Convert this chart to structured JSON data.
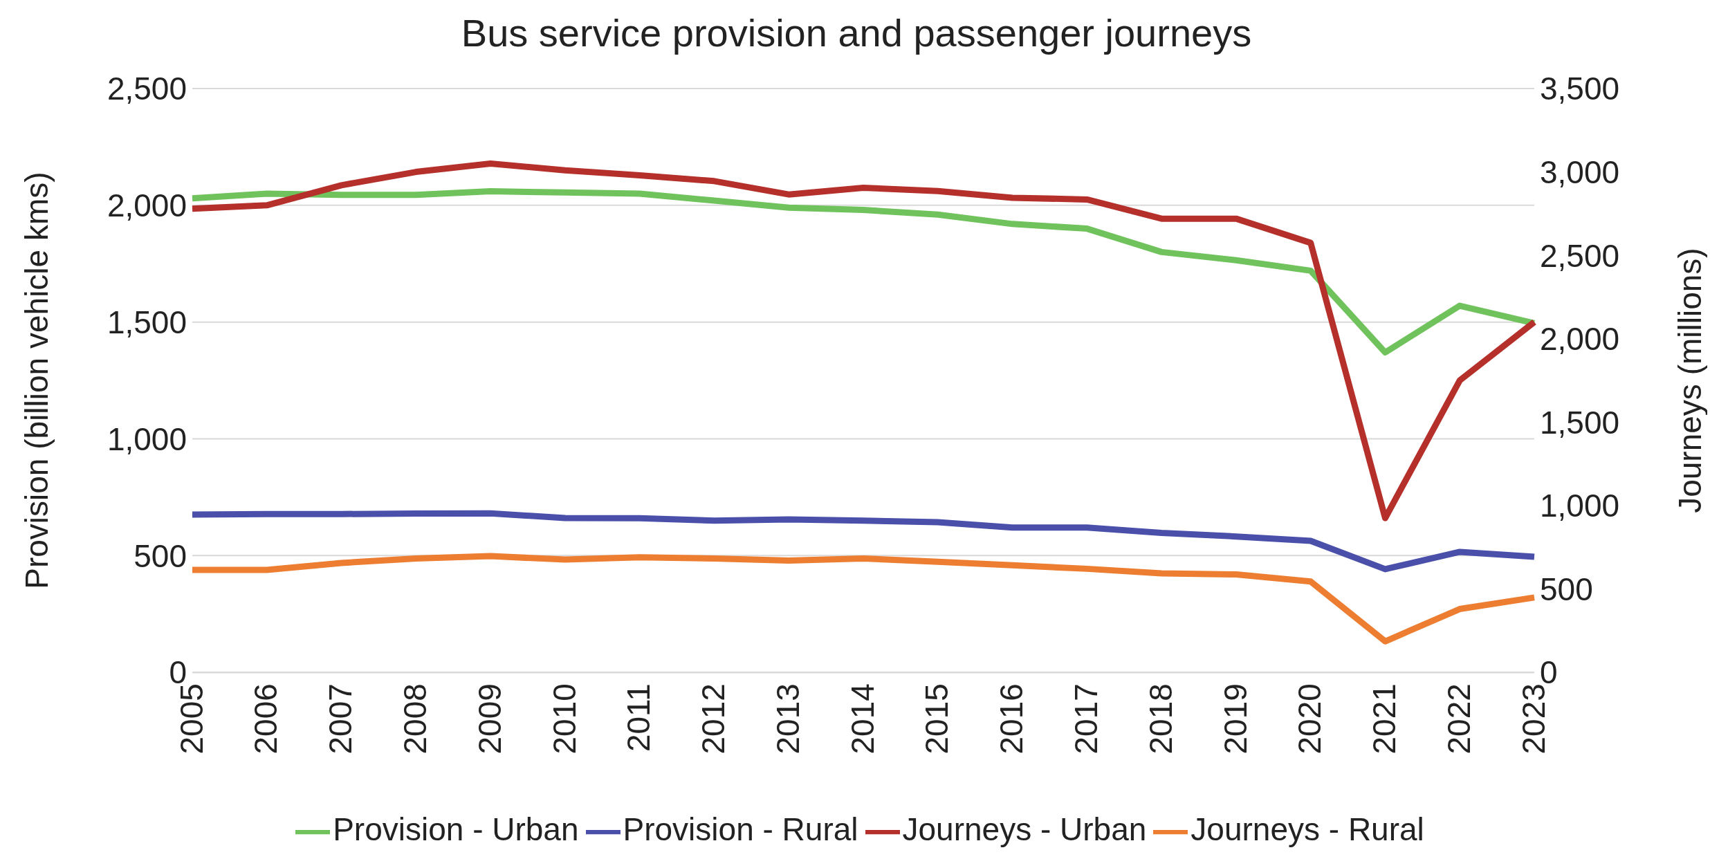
{
  "chart_data": {
    "type": "line",
    "title": "Bus service provision and passenger journeys",
    "ylabel": "Provision (billion vehicle kms)",
    "y2label": "Journeys (millions)",
    "categories": [
      "2005",
      "2006",
      "2007",
      "2008",
      "2009",
      "2010",
      "2011",
      "2012",
      "2013",
      "2014",
      "2015",
      "2016",
      "2017",
      "2018",
      "2019",
      "2020",
      "2021",
      "2022",
      "2023"
    ],
    "series": [
      {
        "name": "Provision - Urban",
        "color": "#70c35c",
        "values": [
          2030,
          2050,
          2045,
          2045,
          2060,
          2055,
          2050,
          2020,
          1990,
          1980,
          1960,
          1920,
          1900,
          1800,
          1765,
          1720,
          1370,
          1570,
          1495
        ]
      },
      {
        "name": "Provision - Rural",
        "color": "#4a4faa",
        "values": [
          676,
          678,
          678,
          680,
          681,
          661,
          660,
          650,
          655,
          650,
          643,
          620,
          620,
          597,
          582,
          563,
          442,
          516,
          495
        ]
      },
      {
        "name": "Journeys - Urban",
        "color": "#b5302a",
        "axis": "y2",
        "values": [
          2780,
          2800,
          2920,
          3000,
          3050,
          3010,
          2980,
          2945,
          2865,
          2905,
          2885,
          2845,
          2835,
          2720,
          2720,
          2575,
          925,
          1750,
          2100
        ]
      },
      {
        "name": "Journeys - Rural",
        "color": "#ed7d31",
        "axis": "y2",
        "values": [
          614,
          614,
          656,
          683,
          697,
          676,
          690,
          683,
          670,
          683,
          663,
          642,
          621,
          594,
          587,
          545,
          186,
          380,
          449
        ]
      }
    ],
    "ylim": [
      0,
      2500
    ],
    "yticks": [
      0,
      {
        "value": 500,
        "label": "500"
      },
      {
        "value": 1000,
        "label": "1,000"
      },
      {
        "value": 1500,
        "label": "1,500"
      },
      {
        "value": 2000,
        "label": "2,000"
      },
      {
        "value": 2500,
        "label": "2,500"
      }
    ],
    "y2lim": [
      0,
      3500
    ],
    "y2ticks": [
      0,
      {
        "value": 500,
        "label": "500"
      },
      {
        "value": 1000,
        "label": "1,000"
      },
      {
        "value": 1500,
        "label": "1,500"
      },
      {
        "value": 2000,
        "label": "2,000"
      },
      {
        "value": 2500,
        "label": "2,500"
      },
      {
        "value": 3000,
        "label": "3,000"
      },
      {
        "value": 3500,
        "label": "3,500"
      }
    ],
    "grid": "y",
    "legend": "bottom",
    "marker": "none",
    "line_style": "solid"
  }
}
